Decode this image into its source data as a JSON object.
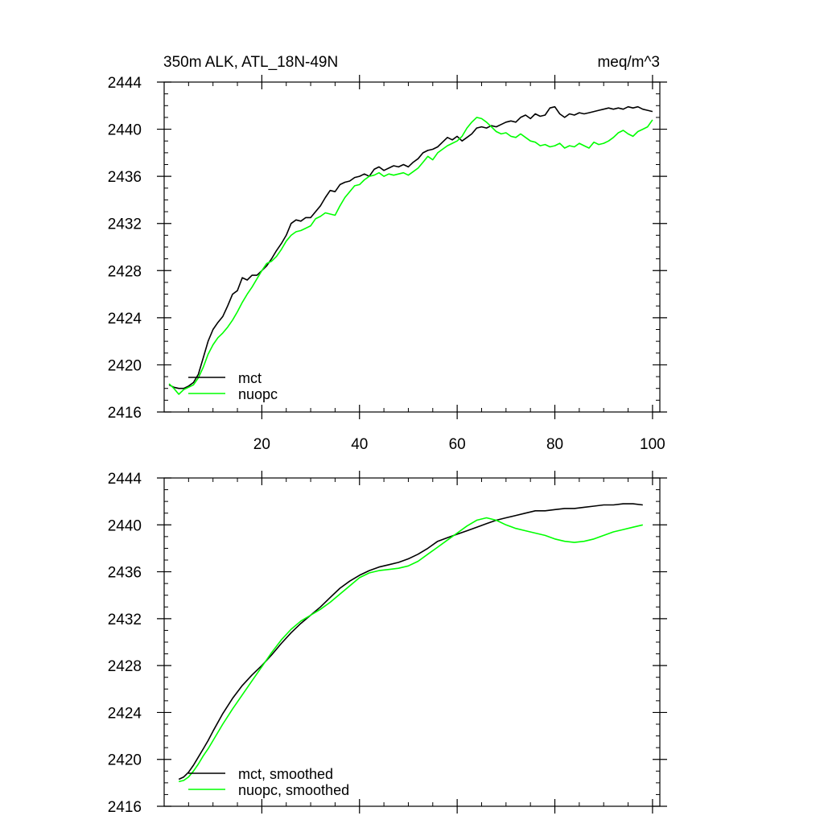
{
  "header": {
    "title_left": "350m ALK, ATL_18N-49N",
    "title_right": "meq/m^3"
  },
  "chart_data": [
    {
      "type": "line",
      "panel": "top",
      "title": "350m ALK, ATL_18N-49N",
      "units": "meq/m^3",
      "xlim": [
        0,
        101.5
      ],
      "ylim": [
        2416,
        2444
      ],
      "xticks": [
        20,
        40,
        60,
        80,
        100
      ],
      "xtick_labels": [
        "20",
        "40",
        "60",
        "80",
        "100"
      ],
      "yticks": [
        2416,
        2420,
        2424,
        2428,
        2432,
        2436,
        2440,
        2444
      ],
      "ytick_labels": [
        "2416",
        "2420",
        "2424",
        "2428",
        "2432",
        "2436",
        "2440",
        "2444"
      ],
      "legend_position": "bottom-left",
      "series": [
        {
          "name": "mct",
          "color": "#000000",
          "x": [
            1,
            2,
            3,
            4,
            5,
            6,
            7,
            8,
            9,
            10,
            11,
            12,
            13,
            14,
            15,
            16,
            17,
            18,
            19,
            20,
            21,
            22,
            23,
            24,
            25,
            26,
            27,
            28,
            29,
            30,
            31,
            32,
            33,
            34,
            35,
            36,
            37,
            38,
            39,
            40,
            41,
            42,
            43,
            44,
            45,
            46,
            47,
            48,
            49,
            50,
            51,
            52,
            53,
            54,
            55,
            56,
            57,
            58,
            59,
            60,
            61,
            62,
            63,
            64,
            65,
            66,
            67,
            68,
            69,
            70,
            71,
            72,
            73,
            74,
            75,
            76,
            77,
            78,
            79,
            80,
            81,
            82,
            83,
            84,
            85,
            86,
            87,
            88,
            89,
            90,
            91,
            92,
            93,
            94,
            95,
            96,
            97,
            98,
            99,
            100
          ],
          "values": [
            2418.3,
            2418.1,
            2418.0,
            2418.0,
            2418.2,
            2418.5,
            2419.2,
            2420.6,
            2422.0,
            2423.0,
            2423.6,
            2424.1,
            2425.0,
            2426.0,
            2426.3,
            2427.4,
            2427.2,
            2427.6,
            2427.6,
            2428.0,
            2428.4,
            2429.0,
            2429.7,
            2430.3,
            2431.0,
            2432.0,
            2432.3,
            2432.2,
            2432.5,
            2432.5,
            2433.0,
            2433.5,
            2434.2,
            2434.8,
            2434.7,
            2435.3,
            2435.5,
            2435.6,
            2435.9,
            2436.0,
            2436.2,
            2436.0,
            2436.6,
            2436.8,
            2436.5,
            2436.7,
            2436.9,
            2436.8,
            2437.0,
            2436.8,
            2437.2,
            2437.5,
            2438.0,
            2438.2,
            2438.3,
            2438.5,
            2438.9,
            2439.3,
            2439.1,
            2439.4,
            2439.0,
            2439.3,
            2439.6,
            2440.1,
            2440.2,
            2440.1,
            2440.3,
            2440.2,
            2440.4,
            2440.6,
            2440.7,
            2440.6,
            2441.0,
            2441.2,
            2440.9,
            2441.3,
            2441.1,
            2441.2,
            2441.8,
            2441.9,
            2441.3,
            2441.0,
            2441.3,
            2441.2,
            2441.4,
            2441.3,
            2441.4,
            2441.5,
            2441.6,
            2441.7,
            2441.8,
            2441.7,
            2441.8,
            2441.7,
            2441.9,
            2441.8,
            2441.9,
            2441.7,
            2441.6,
            2441.5
          ],
          "values_note": "raw"
        },
        {
          "name": "nuopc",
          "color": "#00ff00",
          "x": [
            1,
            2,
            3,
            4,
            5,
            6,
            7,
            8,
            9,
            10,
            11,
            12,
            13,
            14,
            15,
            16,
            17,
            18,
            19,
            20,
            21,
            22,
            23,
            24,
            25,
            26,
            27,
            28,
            29,
            30,
            31,
            32,
            33,
            34,
            35,
            36,
            37,
            38,
            39,
            40,
            41,
            42,
            43,
            44,
            45,
            46,
            47,
            48,
            49,
            50,
            51,
            52,
            53,
            54,
            55,
            56,
            57,
            58,
            59,
            60,
            61,
            62,
            63,
            64,
            65,
            66,
            67,
            68,
            69,
            70,
            71,
            72,
            73,
            74,
            75,
            76,
            77,
            78,
            79,
            80,
            81,
            82,
            83,
            84,
            85,
            86,
            87,
            88,
            89,
            90,
            91,
            92,
            93,
            94,
            95,
            96,
            97,
            98,
            99,
            100
          ],
          "values": [
            2418.4,
            2418.0,
            2417.5,
            2417.9,
            2418.1,
            2418.3,
            2418.9,
            2419.8,
            2420.9,
            2421.7,
            2422.3,
            2422.7,
            2423.2,
            2423.8,
            2424.5,
            2425.3,
            2426.0,
            2426.6,
            2427.3,
            2428.0,
            2428.6,
            2428.8,
            2429.2,
            2429.8,
            2430.5,
            2431.0,
            2431.3,
            2431.4,
            2431.6,
            2431.8,
            2432.4,
            2432.6,
            2432.9,
            2432.8,
            2432.7,
            2433.5,
            2434.2,
            2434.7,
            2435.2,
            2435.3,
            2435.7,
            2436.0,
            2436.1,
            2436.3,
            2436.0,
            2436.2,
            2436.1,
            2436.2,
            2436.3,
            2436.1,
            2436.4,
            2436.7,
            2437.2,
            2437.7,
            2437.4,
            2438.0,
            2438.3,
            2438.6,
            2438.8,
            2439.0,
            2439.4,
            2440.1,
            2440.6,
            2441.0,
            2440.9,
            2440.6,
            2440.2,
            2439.8,
            2439.6,
            2439.7,
            2439.4,
            2439.3,
            2439.6,
            2439.3,
            2439.0,
            2438.9,
            2438.6,
            2438.7,
            2438.5,
            2438.6,
            2438.8,
            2438.4,
            2438.6,
            2438.5,
            2438.8,
            2438.6,
            2438.4,
            2438.9,
            2438.7,
            2438.8,
            2439.0,
            2439.3,
            2439.7,
            2439.9,
            2439.6,
            2439.4,
            2439.8,
            2440.0,
            2440.2,
            2440.8
          ]
        }
      ]
    },
    {
      "type": "line",
      "panel": "bottom",
      "xlim": [
        0,
        101.5
      ],
      "ylim": [
        2416,
        2444
      ],
      "xticks": [
        20,
        40,
        60,
        80,
        100
      ],
      "yticks": [
        2416,
        2420,
        2424,
        2428,
        2432,
        2436,
        2440,
        2444
      ],
      "ytick_labels": [
        "2416",
        "2420",
        "2424",
        "2428",
        "2432",
        "2436",
        "2440",
        "2444"
      ],
      "legend_position": "bottom-left",
      "series": [
        {
          "name": "mct, smoothed",
          "color": "#000000",
          "x": [
            3,
            4,
            5,
            6,
            7,
            8,
            9,
            10,
            12,
            14,
            16,
            18,
            20,
            22,
            24,
            26,
            28,
            30,
            32,
            34,
            36,
            38,
            40,
            42,
            44,
            46,
            48,
            50,
            52,
            54,
            56,
            58,
            60,
            62,
            64,
            66,
            68,
            70,
            72,
            74,
            76,
            78,
            80,
            82,
            84,
            86,
            88,
            90,
            92,
            94,
            96,
            98
          ],
          "values": [
            2418.3,
            2418.5,
            2418.9,
            2419.5,
            2420.2,
            2420.9,
            2421.6,
            2422.4,
            2423.9,
            2425.2,
            2426.3,
            2427.2,
            2428.0,
            2428.9,
            2429.9,
            2430.8,
            2431.6,
            2432.3,
            2433.0,
            2433.8,
            2434.6,
            2435.2,
            2435.7,
            2436.1,
            2436.4,
            2436.6,
            2436.8,
            2437.1,
            2437.5,
            2438.0,
            2438.6,
            2438.9,
            2439.2,
            2439.5,
            2439.8,
            2440.1,
            2440.4,
            2440.6,
            2440.8,
            2441.0,
            2441.2,
            2441.2,
            2441.3,
            2441.4,
            2441.4,
            2441.5,
            2441.6,
            2441.7,
            2441.7,
            2441.8,
            2441.8,
            2441.7
          ]
        },
        {
          "name": "nuopc, smoothed",
          "color": "#00ff00",
          "x": [
            3,
            4,
            5,
            6,
            7,
            8,
            9,
            10,
            12,
            14,
            16,
            18,
            20,
            22,
            24,
            26,
            28,
            30,
            32,
            34,
            36,
            38,
            40,
            42,
            44,
            46,
            48,
            50,
            52,
            54,
            56,
            58,
            60,
            62,
            64,
            66,
            68,
            70,
            72,
            74,
            76,
            78,
            80,
            82,
            84,
            86,
            88,
            90,
            92,
            94,
            96,
            98
          ],
          "values": [
            2418.1,
            2418.2,
            2418.5,
            2419.0,
            2419.6,
            2420.3,
            2420.9,
            2421.6,
            2423.0,
            2424.3,
            2425.5,
            2426.7,
            2427.9,
            2429.1,
            2430.2,
            2431.1,
            2431.8,
            2432.3,
            2432.8,
            2433.4,
            2434.1,
            2434.8,
            2435.5,
            2435.9,
            2436.1,
            2436.2,
            2436.3,
            2436.5,
            2436.9,
            2437.5,
            2438.1,
            2438.7,
            2439.3,
            2439.9,
            2440.4,
            2440.6,
            2440.4,
            2440.0,
            2439.7,
            2439.5,
            2439.3,
            2439.1,
            2438.8,
            2438.6,
            2438.5,
            2438.6,
            2438.8,
            2439.1,
            2439.4,
            2439.6,
            2439.8,
            2440.0
          ]
        }
      ]
    }
  ]
}
